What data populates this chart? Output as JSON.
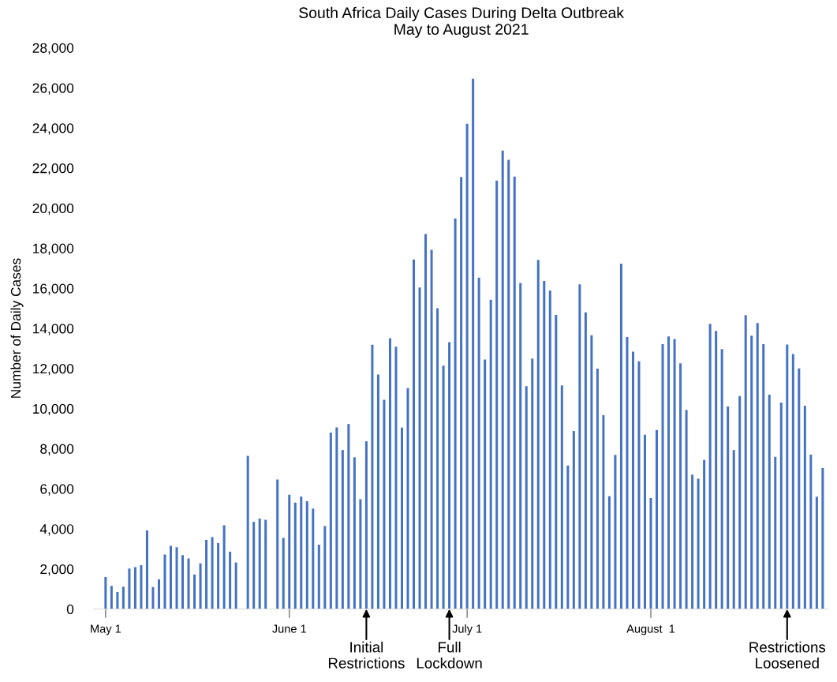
{
  "chart_data": {
    "type": "bar",
    "title": "South Africa Daily Cases During Delta Outbreak\nMay to August 2021",
    "ylabel": "Number of Daily Cases",
    "x": [
      "2021-05-01",
      "2021-05-02",
      "2021-05-03",
      "2021-05-04",
      "2021-05-05",
      "2021-05-06",
      "2021-05-07",
      "2021-05-08",
      "2021-05-09",
      "2021-05-10",
      "2021-05-11",
      "2021-05-12",
      "2021-05-13",
      "2021-05-14",
      "2021-05-15",
      "2021-05-16",
      "2021-05-17",
      "2021-05-18",
      "2021-05-19",
      "2021-05-20",
      "2021-05-21",
      "2021-05-22",
      "2021-05-23",
      "2021-05-24",
      "2021-05-25",
      "2021-05-26",
      "2021-05-27",
      "2021-05-28",
      "2021-05-29",
      "2021-05-30",
      "2021-05-31",
      "2021-06-01",
      "2021-06-02",
      "2021-06-03",
      "2021-06-04",
      "2021-06-05",
      "2021-06-06",
      "2021-06-07",
      "2021-06-08",
      "2021-06-09",
      "2021-06-10",
      "2021-06-11",
      "2021-06-12",
      "2021-06-13",
      "2021-06-14",
      "2021-06-15",
      "2021-06-16",
      "2021-06-17",
      "2021-06-18",
      "2021-06-19",
      "2021-06-20",
      "2021-06-21",
      "2021-06-22",
      "2021-06-23",
      "2021-06-24",
      "2021-06-25",
      "2021-06-26",
      "2021-06-27",
      "2021-06-28",
      "2021-06-29",
      "2021-06-30",
      "2021-07-01",
      "2021-07-02",
      "2021-07-03",
      "2021-07-04",
      "2021-07-05",
      "2021-07-06",
      "2021-07-07",
      "2021-07-08",
      "2021-07-09",
      "2021-07-10",
      "2021-07-11",
      "2021-07-12",
      "2021-07-13",
      "2021-07-14",
      "2021-07-15",
      "2021-07-16",
      "2021-07-17",
      "2021-07-18",
      "2021-07-19",
      "2021-07-20",
      "2021-07-21",
      "2021-07-22",
      "2021-07-23",
      "2021-07-24",
      "2021-07-25",
      "2021-07-26",
      "2021-07-27",
      "2021-07-28",
      "2021-07-29",
      "2021-07-30",
      "2021-07-31",
      "2021-08-01",
      "2021-08-02",
      "2021-08-03",
      "2021-08-04",
      "2021-08-05",
      "2021-08-06",
      "2021-08-07",
      "2021-08-08",
      "2021-08-09",
      "2021-08-10",
      "2021-08-11",
      "2021-08-12",
      "2021-08-13",
      "2021-08-14",
      "2021-08-15",
      "2021-08-16",
      "2021-08-17",
      "2021-08-18",
      "2021-08-19",
      "2021-08-20",
      "2021-08-21",
      "2021-08-22",
      "2021-08-23",
      "2021-08-24",
      "2021-08-25",
      "2021-08-26",
      "2021-08-27",
      "2021-08-28",
      "2021-08-29",
      "2021-08-30"
    ],
    "values": [
      1600,
      1150,
      850,
      1110,
      2020,
      2090,
      2190,
      3920,
      1090,
      1480,
      2720,
      3150,
      3080,
      2690,
      2520,
      1720,
      2280,
      3450,
      3590,
      3290,
      4180,
      2860,
      2320,
      null,
      7640,
      4350,
      4510,
      4450,
      null,
      6460,
      3550,
      5700,
      5310,
      5610,
      5380,
      5010,
      3210,
      4140,
      8800,
      9060,
      7930,
      9230,
      7570,
      5480,
      8370,
      13180,
      11700,
      10440,
      13510,
      13090,
      9050,
      11020,
      17440,
      16040,
      18710,
      17920,
      15000,
      12140,
      13310,
      19480,
      21550,
      24210,
      26450,
      16530,
      12450,
      15430,
      21370,
      22870,
      22410,
      21570,
      16260,
      11120,
      12490,
      17420,
      16360,
      15890,
      14670,
      11160,
      7160,
      8880,
      16200,
      14800,
      13660,
      11990,
      9670,
      5630,
      7690,
      17230,
      13570,
      12840,
      12360,
      8690,
      5540,
      8930,
      13210,
      13600,
      13470,
      12260,
      9930,
      6700,
      6500,
      7440,
      14230,
      13870,
      12970,
      10100,
      7930,
      10620,
      14660,
      13640,
      14270,
      13210,
      10690,
      7590,
      10300,
      13190,
      12720,
      12000,
      10140,
      7700,
      5600,
      7030
    ],
    "color": "#4472c4",
    "xticks": [
      {
        "value": "2021-05-01",
        "label": "May 1"
      },
      {
        "value": "2021-06-01",
        "label": "June 1"
      },
      {
        "value": "2021-07-01",
        "label": "July 1"
      },
      {
        "value": "2021-08-01",
        "label": "August  1"
      }
    ],
    "ylim": [
      0,
      28000
    ],
    "yticks": [
      {
        "value": 0,
        "label": "0"
      },
      {
        "value": 2000,
        "label": "2,000"
      },
      {
        "value": 4000,
        "label": "4,000"
      },
      {
        "value": 6000,
        "label": "6,000"
      },
      {
        "value": 8000,
        "label": "8,000"
      },
      {
        "value": 10000,
        "label": "10,000"
      },
      {
        "value": 12000,
        "label": "12,000"
      },
      {
        "value": 14000,
        "label": "14,000"
      },
      {
        "value": 16000,
        "label": "16,000"
      },
      {
        "value": 18000,
        "label": "18,000"
      },
      {
        "value": 20000,
        "label": "20,000"
      },
      {
        "value": 22000,
        "label": "22,000"
      },
      {
        "value": 24000,
        "label": "24,000"
      },
      {
        "value": 26000,
        "label": "26,000"
      },
      {
        "value": 28000,
        "label": "28,000"
      }
    ],
    "xlim": [
      "2021-04-29",
      "2021-08-31"
    ],
    "annotations": [
      {
        "text": "Initial\nRestrictions",
        "x": "2021-06-14",
        "y": 0
      },
      {
        "text": "Full\nLockdown",
        "x": "2021-06-28",
        "y": 0
      },
      {
        "text": "Restrictions\nLoosened",
        "x": "2021-08-24",
        "y": 0
      }
    ],
    "grid": false
  }
}
